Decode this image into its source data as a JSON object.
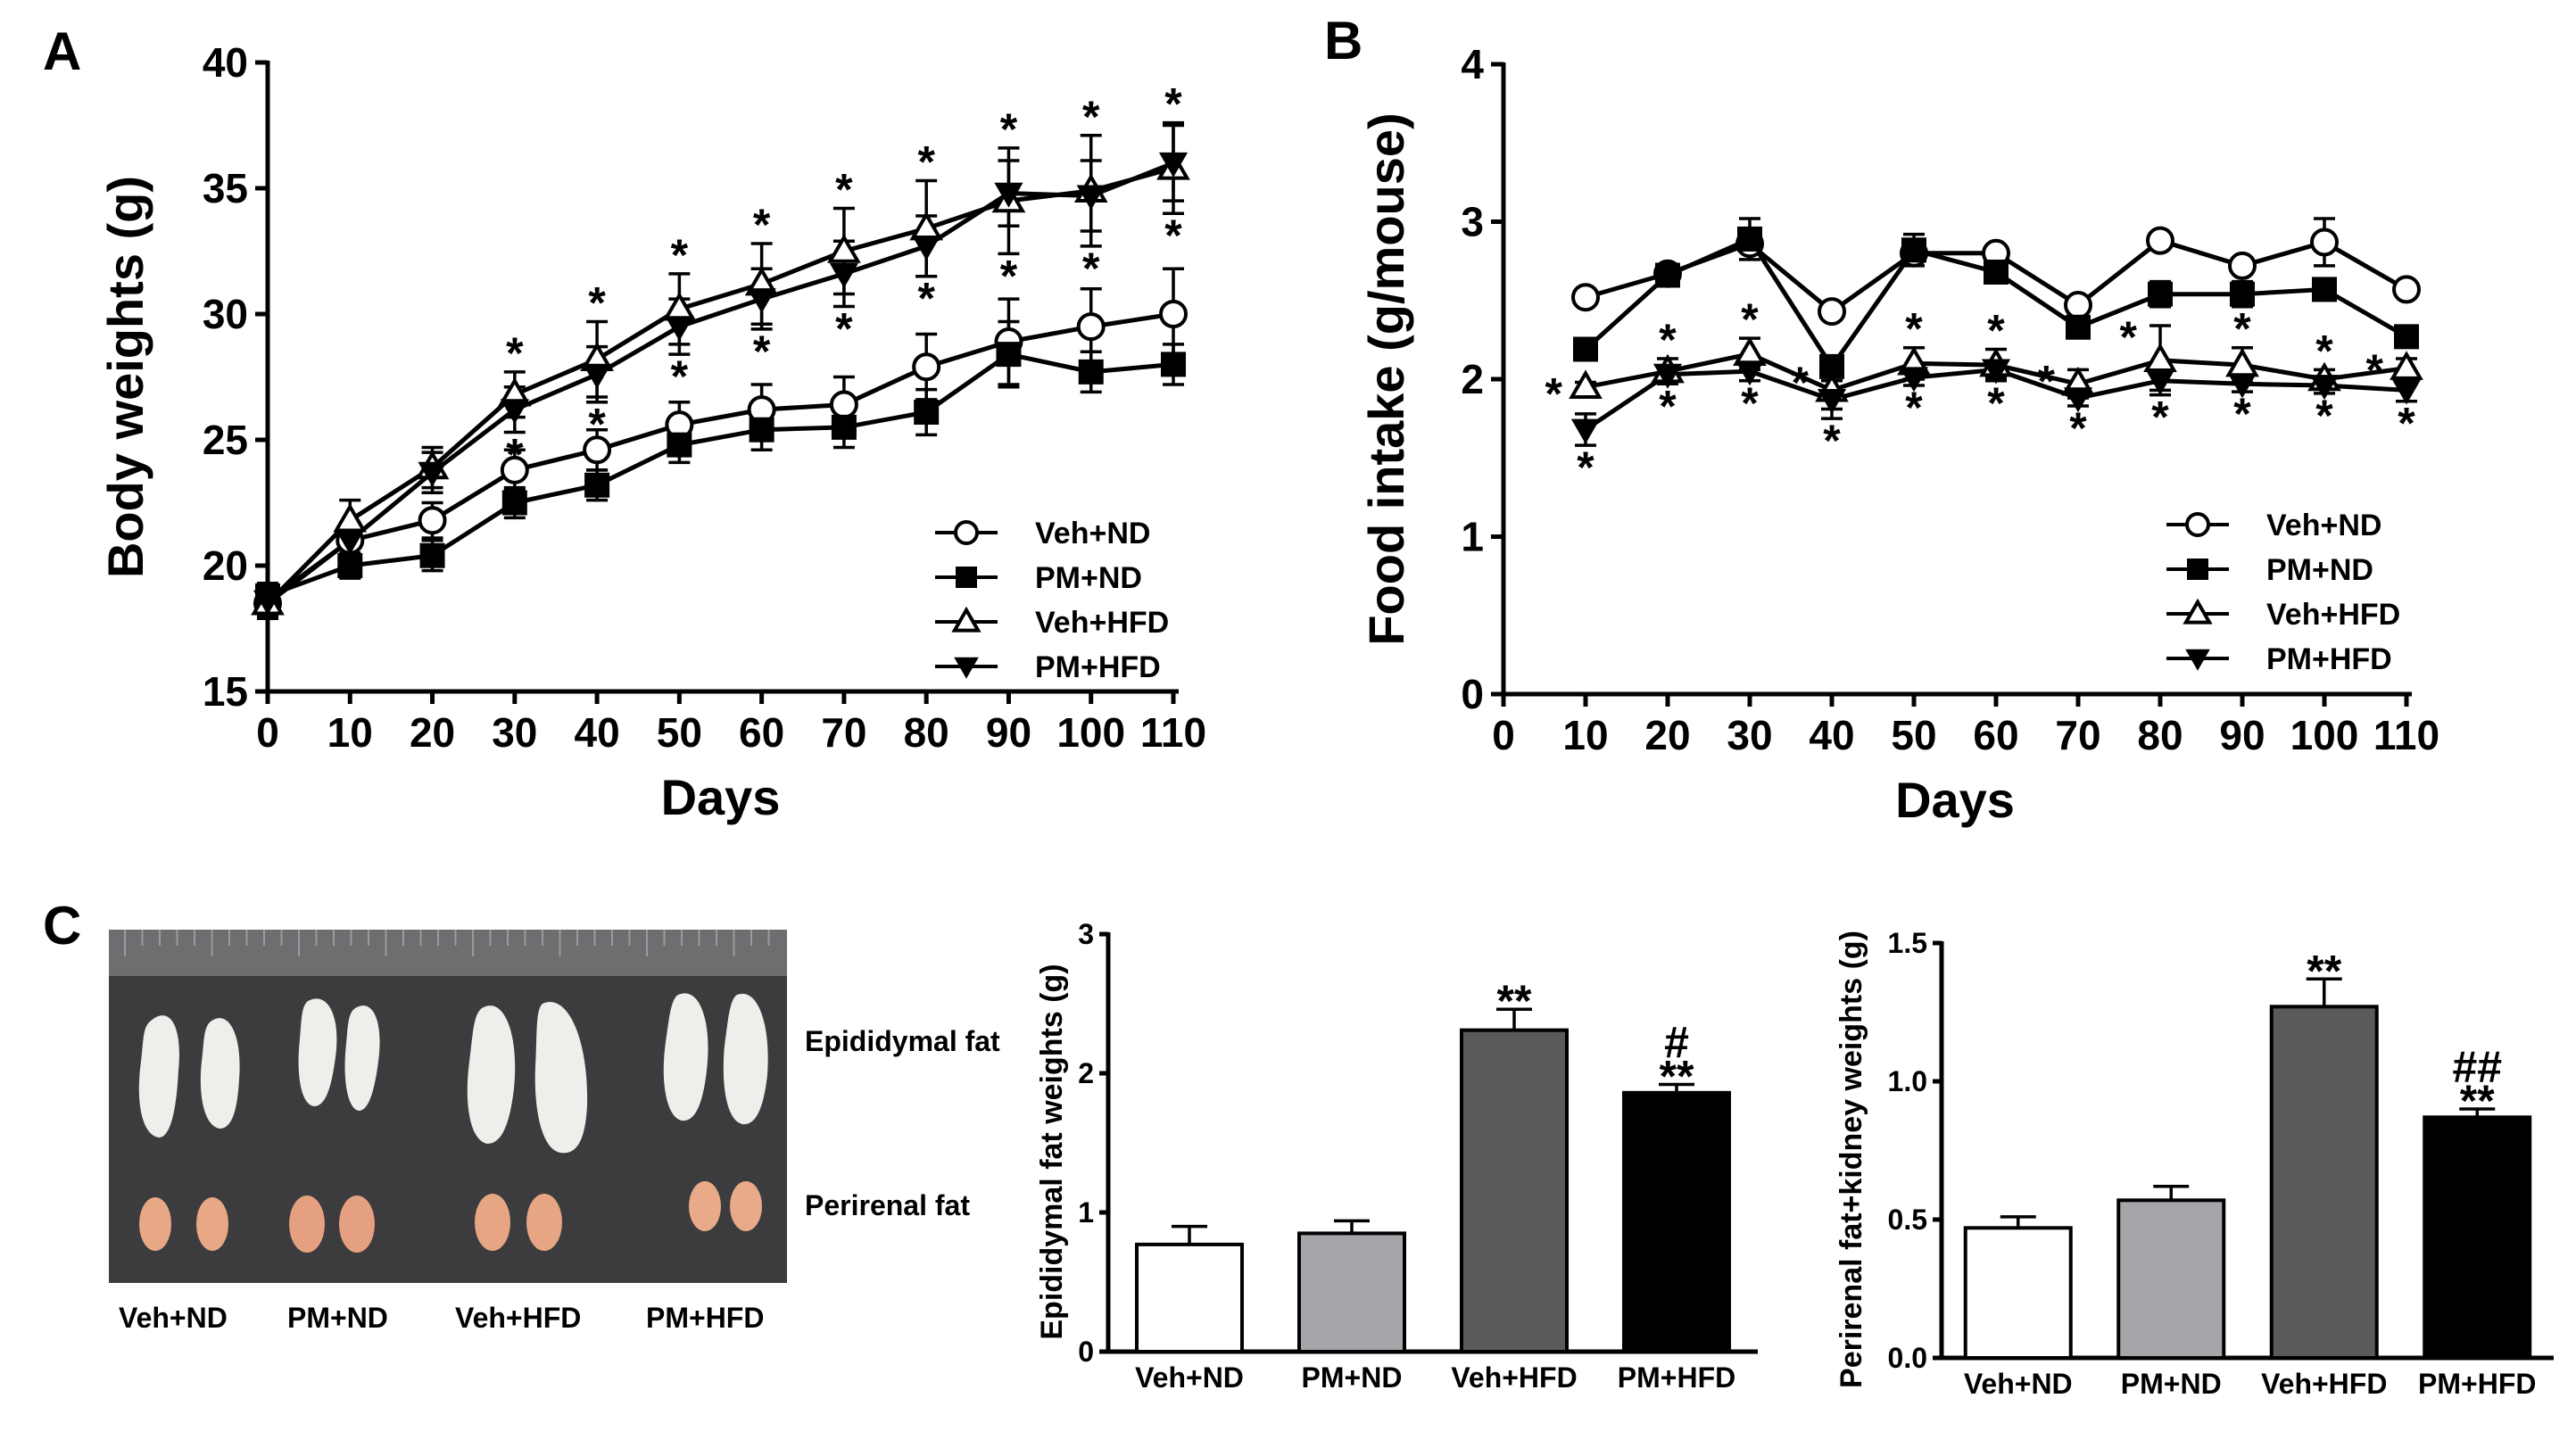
{
  "panels": {
    "a": "A",
    "b": "B",
    "c": "C"
  },
  "photo": {
    "epididymal_label": "Epididymal fat",
    "perirenal_label": "Perirenal fat",
    "group_labels": [
      "Veh+ND",
      "PM+ND",
      "Veh+HFD",
      "PM+HFD"
    ]
  },
  "colors": {
    "bar_veh_nd": "#ffffff",
    "bar_pm_nd": "#a6a6aa",
    "bar_veh_hfd": "#5a5a5a",
    "bar_pm_hfd": "#000000",
    "photo_bg": "#3c3c3e"
  },
  "chart_data": [
    {
      "id": "A",
      "type": "line",
      "title": "",
      "xlabel": "Days",
      "ylabel": "Body weights (g)",
      "xlim": [
        0,
        110
      ],
      "ylim": [
        15,
        40
      ],
      "xticks": [
        0,
        10,
        20,
        30,
        40,
        50,
        60,
        70,
        80,
        90,
        100,
        110
      ],
      "yticks": [
        15,
        20,
        25,
        30,
        35,
        40
      ],
      "legend_position": "bottom-right",
      "series": [
        {
          "name": "Veh+ND",
          "marker": "circle-open",
          "x": [
            0,
            10,
            20,
            30,
            40,
            50,
            60,
            70,
            80,
            90,
            100,
            110
          ],
          "y": [
            18.5,
            21.0,
            21.8,
            23.8,
            24.6,
            25.6,
            26.2,
            26.4,
            27.9,
            28.9,
            29.5,
            30.0
          ],
          "err": [
            0.5,
            0.6,
            0.7,
            0.8,
            0.8,
            0.9,
            1.0,
            1.1,
            1.3,
            1.7,
            1.5,
            1.8
          ]
        },
        {
          "name": "PM+ND",
          "marker": "square-filled",
          "x": [
            0,
            10,
            20,
            30,
            40,
            50,
            60,
            70,
            80,
            90,
            100,
            110
          ],
          "y": [
            18.8,
            20.0,
            20.4,
            22.5,
            23.2,
            24.8,
            25.4,
            25.5,
            26.1,
            28.4,
            27.7,
            28.0
          ],
          "err": [
            0.5,
            0.5,
            0.6,
            0.6,
            0.6,
            0.7,
            0.8,
            0.8,
            0.9,
            1.3,
            0.8,
            0.8
          ]
        },
        {
          "name": "Veh+HFD",
          "marker": "triangle-open",
          "x": [
            0,
            10,
            20,
            30,
            40,
            50,
            60,
            70,
            80,
            90,
            100,
            110
          ],
          "y": [
            18.5,
            21.8,
            23.9,
            26.8,
            28.2,
            30.2,
            31.2,
            32.5,
            33.4,
            34.5,
            34.9,
            35.8
          ],
          "err": [
            0.6,
            0.8,
            0.8,
            0.9,
            1.5,
            1.4,
            1.6,
            1.7,
            1.9,
            2.1,
            2.2,
            1.8
          ]
        },
        {
          "name": "PM+HFD",
          "marker": "triangle-down-filled",
          "x": [
            0,
            10,
            20,
            30,
            40,
            50,
            60,
            70,
            80,
            90,
            100,
            110
          ],
          "y": [
            18.6,
            21.0,
            23.7,
            26.2,
            27.6,
            29.5,
            30.6,
            31.6,
            32.7,
            34.8,
            34.7,
            36.0
          ],
          "err": [
            0.5,
            0.7,
            0.8,
            0.9,
            1.1,
            1.1,
            1.2,
            1.3,
            1.2,
            1.3,
            1.4,
            1.5
          ]
        }
      ],
      "annotations": [
        {
          "text": "*",
          "x": 30,
          "side": "above"
        },
        {
          "text": "*",
          "x": 30,
          "side": "below"
        },
        {
          "text": "*",
          "x": 40,
          "side": "above"
        },
        {
          "text": "*",
          "x": 40,
          "side": "below"
        },
        {
          "text": "*",
          "x": 50,
          "side": "above"
        },
        {
          "text": "*",
          "x": 50,
          "side": "below"
        },
        {
          "text": "*",
          "x": 60,
          "side": "above"
        },
        {
          "text": "*",
          "x": 60,
          "side": "below"
        },
        {
          "text": "*",
          "x": 70,
          "side": "above"
        },
        {
          "text": "*",
          "x": 70,
          "side": "below"
        },
        {
          "text": "*",
          "x": 80,
          "side": "above"
        },
        {
          "text": "*",
          "x": 80,
          "side": "below"
        },
        {
          "text": "*",
          "x": 90,
          "side": "above"
        },
        {
          "text": "*",
          "x": 90,
          "side": "below"
        },
        {
          "text": "*",
          "x": 100,
          "side": "above"
        },
        {
          "text": "*",
          "x": 100,
          "side": "below"
        },
        {
          "text": "*",
          "x": 110,
          "side": "above"
        },
        {
          "text": "*",
          "x": 110,
          "side": "below"
        }
      ]
    },
    {
      "id": "B",
      "type": "line",
      "title": "",
      "xlabel": "Days",
      "ylabel": "Food intake (g/mouse)",
      "xlim": [
        0,
        110
      ],
      "ylim": [
        0,
        4
      ],
      "xticks": [
        0,
        10,
        20,
        30,
        40,
        50,
        60,
        70,
        80,
        90,
        100,
        110
      ],
      "yticks": [
        0,
        1,
        2,
        3,
        4
      ],
      "legend_position": "bottom-right",
      "series": [
        {
          "name": "Veh+ND",
          "marker": "circle-open",
          "x": [
            10,
            20,
            30,
            40,
            50,
            60,
            70,
            80,
            90,
            100,
            110
          ],
          "y": [
            2.52,
            2.67,
            2.86,
            2.43,
            2.8,
            2.8,
            2.47,
            2.88,
            2.72,
            2.87,
            2.57
          ],
          "err": [
            0.03,
            0.04,
            0.05,
            0.04,
            0.05,
            0.04,
            0.04,
            0.04,
            0.04,
            0.15,
            0.04
          ]
        },
        {
          "name": "PM+ND",
          "marker": "square-filled",
          "x": [
            10,
            20,
            30,
            40,
            50,
            60,
            70,
            80,
            90,
            100,
            110
          ],
          "y": [
            2.19,
            2.66,
            2.89,
            2.08,
            2.82,
            2.68,
            2.33,
            2.54,
            2.54,
            2.57,
            2.27
          ],
          "err": [
            0.03,
            0.04,
            0.13,
            0.05,
            0.1,
            0.05,
            0.06,
            0.08,
            0.08,
            0.05,
            0.04
          ]
        },
        {
          "name": "Veh+HFD",
          "marker": "triangle-open",
          "x": [
            10,
            20,
            30,
            40,
            50,
            60,
            70,
            80,
            90,
            100,
            110
          ],
          "y": [
            1.95,
            2.05,
            2.16,
            1.93,
            2.1,
            2.09,
            1.97,
            2.12,
            2.09,
            2.0,
            2.07
          ],
          "err": [
            0.03,
            0.08,
            0.1,
            0.12,
            0.1,
            0.1,
            0.09,
            0.22,
            0.11,
            0.06,
            0.06
          ]
        },
        {
          "name": "PM+HFD",
          "marker": "triangle-down-filled",
          "x": [
            10,
            20,
            30,
            40,
            50,
            60,
            70,
            80,
            90,
            100,
            110
          ],
          "y": [
            1.68,
            2.03,
            2.05,
            1.87,
            2.01,
            2.06,
            1.88,
            1.99,
            1.97,
            1.96,
            1.93
          ],
          "err": [
            0.1,
            0.05,
            0.06,
            0.12,
            0.05,
            0.05,
            0.05,
            0.06,
            0.05,
            0.05,
            0.07
          ]
        }
      ],
      "annotations": [
        {
          "text": "*",
          "x": 10,
          "side": "left"
        },
        {
          "text": "*",
          "x": 10,
          "side": "below"
        },
        {
          "text": "*",
          "x": 20,
          "side": "above"
        },
        {
          "text": "*",
          "x": 20,
          "side": "below"
        },
        {
          "text": "*",
          "x": 30,
          "side": "above"
        },
        {
          "text": "*",
          "x": 30,
          "side": "below"
        },
        {
          "text": "*",
          "x": 40,
          "side": "left"
        },
        {
          "text": "*",
          "x": 40,
          "side": "below"
        },
        {
          "text": "*",
          "x": 50,
          "side": "above"
        },
        {
          "text": "*",
          "x": 50,
          "side": "below"
        },
        {
          "text": "*",
          "x": 60,
          "side": "above"
        },
        {
          "text": "*",
          "x": 60,
          "side": "below"
        },
        {
          "text": "*",
          "x": 70,
          "side": "left"
        },
        {
          "text": "*",
          "x": 70,
          "side": "below"
        },
        {
          "text": "*",
          "x": 80,
          "side": "left"
        },
        {
          "text": "*",
          "x": 80,
          "side": "below"
        },
        {
          "text": "*",
          "x": 90,
          "side": "above"
        },
        {
          "text": "*",
          "x": 90,
          "side": "below"
        },
        {
          "text": "*",
          "x": 100,
          "side": "above"
        },
        {
          "text": "*",
          "x": 100,
          "side": "below"
        },
        {
          "text": "*",
          "x": 110,
          "side": "left"
        },
        {
          "text": "*",
          "x": 110,
          "side": "below"
        }
      ]
    },
    {
      "id": "C1",
      "type": "bar",
      "title": "",
      "xlabel": "",
      "ylabel": "Epididymal fat weights (g)",
      "categories": [
        "Veh+ND",
        "PM+ND",
        "Veh+HFD",
        "PM+HFD"
      ],
      "values": [
        0.77,
        0.85,
        2.31,
        1.86
      ],
      "errors": [
        0.13,
        0.09,
        0.15,
        0.06
      ],
      "ylim": [
        0,
        3
      ],
      "yticks": [
        0,
        1,
        2,
        3
      ],
      "ytick_labels": [
        "0",
        "1",
        "2",
        "3"
      ],
      "annotations": [
        {
          "category": "Veh+HFD",
          "lines": [
            "**"
          ]
        },
        {
          "category": "PM+HFD",
          "lines": [
            "#",
            "**"
          ]
        }
      ]
    },
    {
      "id": "C2",
      "type": "bar",
      "title": "",
      "xlabel": "",
      "ylabel": "Perirenal fat+kidney weights (g)",
      "categories": [
        "Veh+ND",
        "PM+ND",
        "Veh+HFD",
        "PM+HFD"
      ],
      "values": [
        0.47,
        0.57,
        1.27,
        0.87
      ],
      "errors": [
        0.04,
        0.05,
        0.1,
        0.03
      ],
      "ylim": [
        0,
        1.5
      ],
      "yticks": [
        0,
        0.5,
        1.0,
        1.5
      ],
      "ytick_labels": [
        "0.0",
        "0.5",
        "1.0",
        "1.5"
      ],
      "annotations": [
        {
          "category": "Veh+HFD",
          "lines": [
            "**"
          ]
        },
        {
          "category": "PM+HFD",
          "lines": [
            "##",
            "**"
          ]
        }
      ]
    }
  ]
}
